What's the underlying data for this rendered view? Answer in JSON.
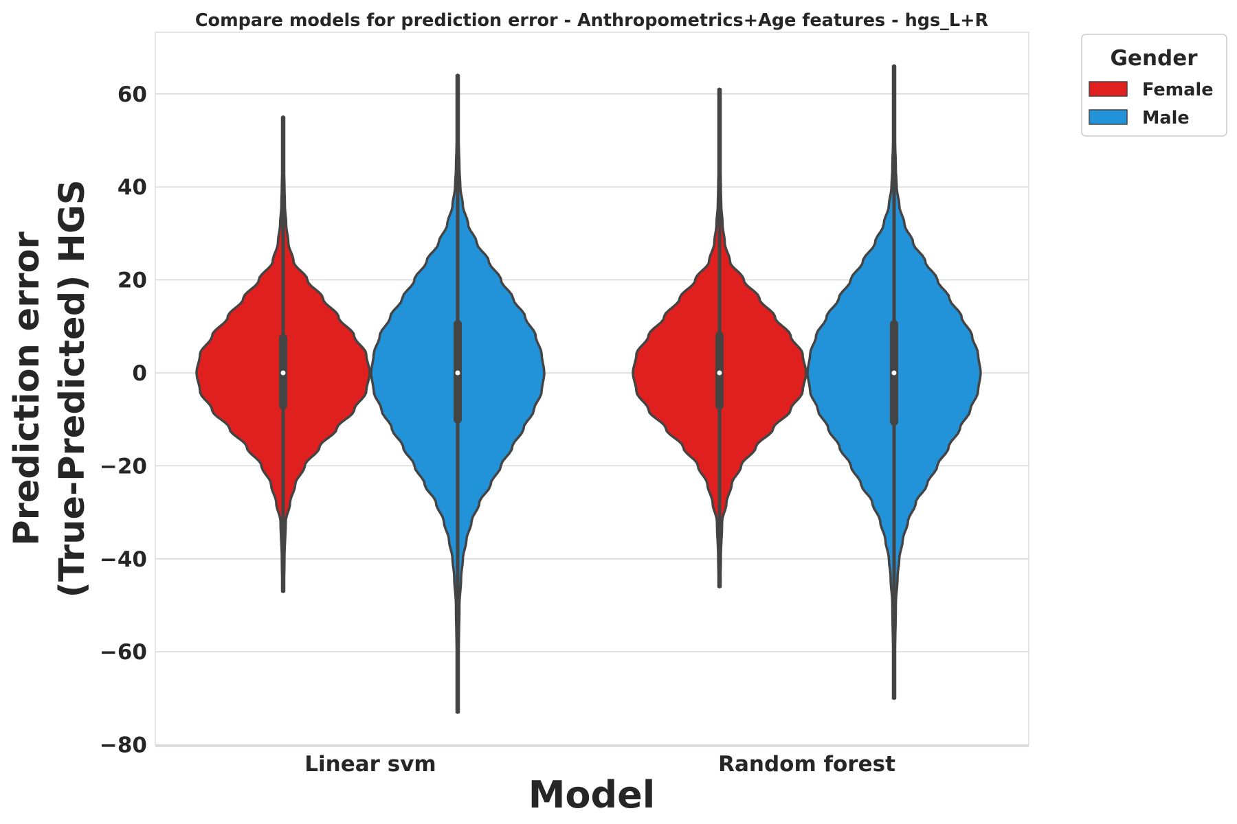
{
  "chart_data": {
    "type": "violin",
    "title": "Compare models for prediction error - Anthropometrics+Age features - hgs_L+R",
    "xlabel": "Model",
    "ylabel": [
      "Prediction error",
      "(True-Predicted) HGS"
    ],
    "ylim": [
      -80,
      73
    ],
    "yticks": [
      60,
      40,
      20,
      0,
      -20,
      -40,
      -60,
      -80
    ],
    "ytick_labels": [
      "60",
      "40",
      "20",
      "0",
      "−20",
      "−40",
      "−60",
      "−80"
    ],
    "categories": [
      "Linear svm",
      "Random forest"
    ],
    "grid": "horizontal",
    "legend": {
      "title": "Gender",
      "position": "outside-top-right",
      "entries": [
        "Female",
        "Male"
      ]
    },
    "colors": {
      "Female": "#e01f1f",
      "Male": "#2293d8",
      "outline": "#444444"
    },
    "series": [
      {
        "name": "Female",
        "color": "#e01f1f",
        "violins": [
          {
            "category": "Linear svm",
            "min": -47,
            "max": 55,
            "q1": -7,
            "median": 0,
            "q3": 7.5,
            "density": [
              [
                -47,
                0.01
              ],
              [
                -40,
                0.015
              ],
              [
                -32,
                0.03
              ],
              [
                -28,
                0.08
              ],
              [
                -24,
                0.14
              ],
              [
                -20,
                0.25
              ],
              [
                -16,
                0.42
              ],
              [
                -12,
                0.62
              ],
              [
                -8,
                0.82
              ],
              [
                -4,
                0.96
              ],
              [
                0,
                1.0
              ],
              [
                4,
                0.96
              ],
              [
                8,
                0.82
              ],
              [
                12,
                0.64
              ],
              [
                16,
                0.46
              ],
              [
                20,
                0.28
              ],
              [
                24,
                0.12
              ],
              [
                28,
                0.06
              ],
              [
                32,
                0.035
              ],
              [
                36,
                0.02
              ],
              [
                40,
                0.015
              ],
              [
                45,
                0.01
              ],
              [
                55,
                0.01
              ]
            ]
          },
          {
            "category": "Random forest",
            "min": -46,
            "max": 61,
            "q1": -7,
            "median": 0,
            "q3": 8,
            "density": [
              [
                -46,
                0.01
              ],
              [
                -40,
                0.015
              ],
              [
                -32,
                0.03
              ],
              [
                -28,
                0.08
              ],
              [
                -24,
                0.14
              ],
              [
                -20,
                0.25
              ],
              [
                -16,
                0.42
              ],
              [
                -12,
                0.62
              ],
              [
                -8,
                0.82
              ],
              [
                -4,
                0.96
              ],
              [
                0,
                1.0
              ],
              [
                4,
                0.96
              ],
              [
                8,
                0.82
              ],
              [
                12,
                0.64
              ],
              [
                16,
                0.46
              ],
              [
                20,
                0.28
              ],
              [
                24,
                0.12
              ],
              [
                28,
                0.06
              ],
              [
                32,
                0.035
              ],
              [
                36,
                0.02
              ],
              [
                40,
                0.015
              ],
              [
                45,
                0.01
              ],
              [
                61,
                0.01
              ]
            ]
          }
        ]
      },
      {
        "name": "Male",
        "color": "#2293d8",
        "violins": [
          {
            "category": "Linear svm",
            "min": -73,
            "max": 64,
            "q1": -10,
            "median": 0,
            "q3": 10.5,
            "density": [
              [
                -73,
                0.01
              ],
              [
                -60,
                0.012
              ],
              [
                -50,
                0.02
              ],
              [
                -44,
                0.04
              ],
              [
                -40,
                0.06
              ],
              [
                -36,
                0.1
              ],
              [
                -32,
                0.16
              ],
              [
                -28,
                0.25
              ],
              [
                -24,
                0.38
              ],
              [
                -20,
                0.5
              ],
              [
                -16,
                0.63
              ],
              [
                -12,
                0.76
              ],
              [
                -8,
                0.88
              ],
              [
                -4,
                0.97
              ],
              [
                0,
                1.0
              ],
              [
                4,
                0.97
              ],
              [
                8,
                0.9
              ],
              [
                12,
                0.78
              ],
              [
                16,
                0.64
              ],
              [
                20,
                0.5
              ],
              [
                24,
                0.36
              ],
              [
                28,
                0.22
              ],
              [
                32,
                0.12
              ],
              [
                36,
                0.06
              ],
              [
                40,
                0.03
              ],
              [
                44,
                0.02
              ],
              [
                50,
                0.012
              ],
              [
                64,
                0.01
              ]
            ]
          },
          {
            "category": "Random forest",
            "min": -70,
            "max": 66,
            "q1": -10.5,
            "median": 0,
            "q3": 10.5,
            "density": [
              [
                -70,
                0.01
              ],
              [
                -60,
                0.012
              ],
              [
                -50,
                0.02
              ],
              [
                -44,
                0.04
              ],
              [
                -40,
                0.06
              ],
              [
                -36,
                0.1
              ],
              [
                -32,
                0.16
              ],
              [
                -28,
                0.25
              ],
              [
                -24,
                0.38
              ],
              [
                -20,
                0.5
              ],
              [
                -16,
                0.63
              ],
              [
                -12,
                0.76
              ],
              [
                -8,
                0.88
              ],
              [
                -4,
                0.97
              ],
              [
                0,
                1.0
              ],
              [
                4,
                0.97
              ],
              [
                8,
                0.9
              ],
              [
                12,
                0.78
              ],
              [
                16,
                0.64
              ],
              [
                20,
                0.5
              ],
              [
                24,
                0.36
              ],
              [
                28,
                0.22
              ],
              [
                32,
                0.12
              ],
              [
                36,
                0.06
              ],
              [
                40,
                0.03
              ],
              [
                44,
                0.02
              ],
              [
                50,
                0.012
              ],
              [
                66,
                0.01
              ]
            ]
          }
        ]
      }
    ]
  }
}
